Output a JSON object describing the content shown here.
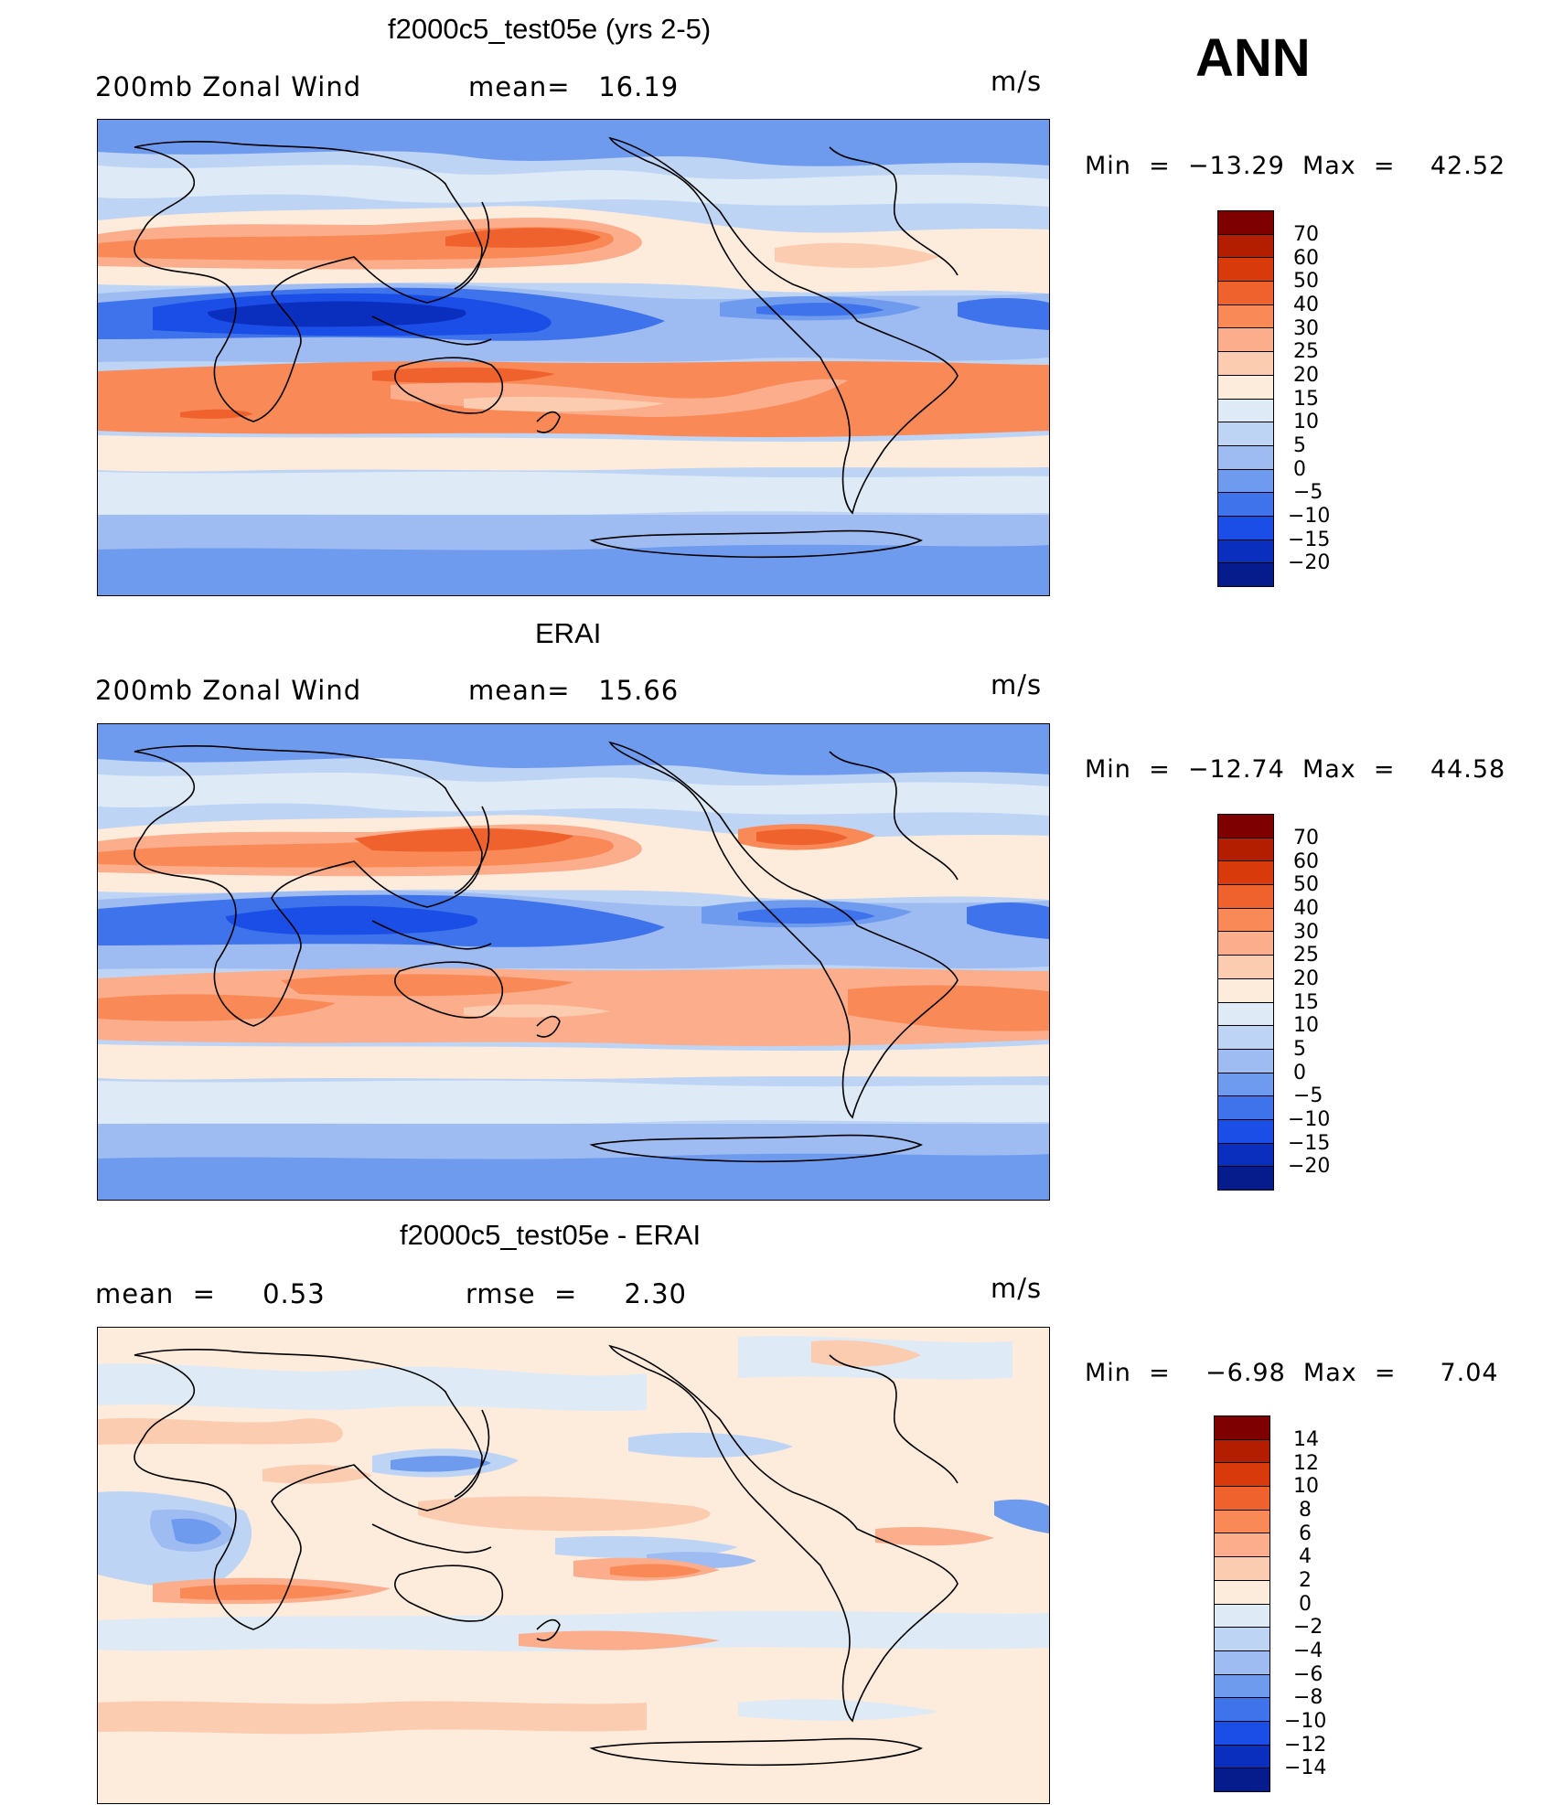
{
  "season_label": "ANN",
  "panels": [
    {
      "title": "f2000c5_test05e (yrs 2-5)",
      "left_text": "200mb Zonal Wind",
      "center_text": "mean=   16.19",
      "units": "m/s",
      "minmax": "Min  =  −13.29  Max  =    42.52",
      "colorbar_levels": [
        "70",
        "60",
        "50",
        "40",
        "30",
        "25",
        "20",
        "15",
        "10",
        "5",
        "0",
        "−5",
        "−10",
        "−15",
        "−20"
      ]
    },
    {
      "title": "ERAI",
      "left_text": "200mb Zonal Wind",
      "center_text": "mean=   15.66",
      "units": "m/s",
      "minmax": "Min  =  −12.74  Max  =    44.58",
      "colorbar_levels": [
        "70",
        "60",
        "50",
        "40",
        "30",
        "25",
        "20",
        "15",
        "10",
        "5",
        "0",
        "−5",
        "−10",
        "−15",
        "−20"
      ]
    },
    {
      "title": "f2000c5_test05e - ERAI",
      "left_text": "mean  =     0.53",
      "center_text": "rmse  =     2.30",
      "units": "m/s",
      "minmax": "Min  =    −6.98  Max  =     7.04",
      "colorbar_levels": [
        "14",
        "12",
        "10",
        "8",
        "6",
        "4",
        "2",
        "0",
        "−2",
        "−4",
        "−6",
        "−8",
        "−10",
        "−12",
        "−14"
      ]
    }
  ],
  "colors": {
    "full_field": [
      "#7f0000",
      "#b41e00",
      "#d93a0c",
      "#f0622d",
      "#f98a57",
      "#fcae8c",
      "#fcccb0",
      "#fdebdc",
      "#deebf7",
      "#bed4f5",
      "#9ebcf2",
      "#6f9bee",
      "#3f73eb",
      "#1a4ee6",
      "#0a2fbf",
      "#061c8c"
    ],
    "difference": [
      "#7f0000",
      "#b41e00",
      "#d93a0c",
      "#f0622d",
      "#f98a57",
      "#fcae8c",
      "#fcccb0",
      "#fdebdc",
      "#deebf7",
      "#bed4f5",
      "#9ebcf2",
      "#6f9bee",
      "#3f73eb",
      "#1a4ee6",
      "#0a2fbf",
      "#061c8c"
    ]
  }
}
